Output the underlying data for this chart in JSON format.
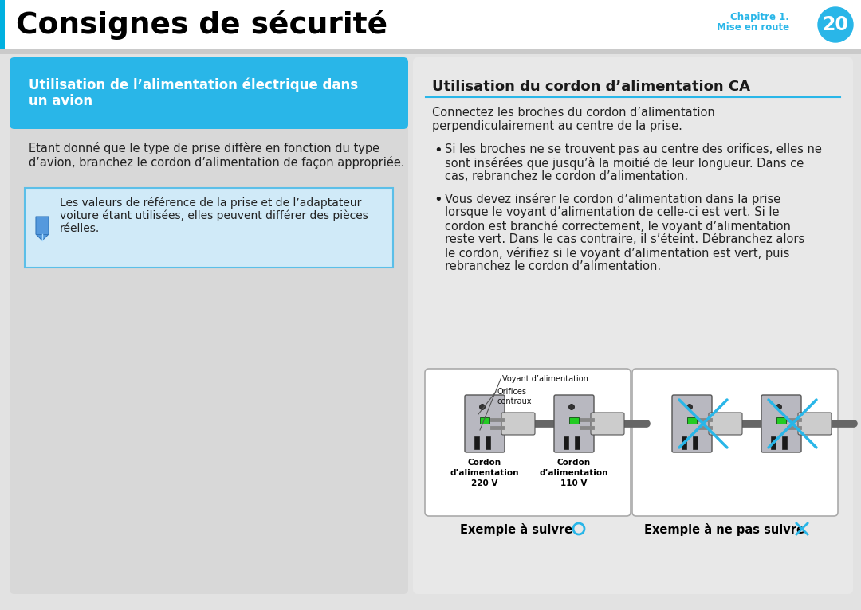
{
  "title": "Consignes de sécurité",
  "chapter_line1": "Chapitre 1.",
  "chapter_line2": "Mise en route",
  "chapter_number": "20",
  "left_section_title_line1": "Utilisation de l’alimentation électrique dans",
  "left_section_title_line2": "un avion",
  "left_body_line1": "Etant donné que le type de prise diffère en fonction du type",
  "left_body_line2": "d’avion, branchez le cordon d’alimentation de façon appropriée.",
  "note_line1": "Les valeurs de référence de la prise et de l’adaptateur",
  "note_line2": "voiture étant utilisées, elles peuvent différer des pièces",
  "note_line3": "réelles.",
  "right_section_title": "Utilisation du cordon d’alimentation CA",
  "right_intro_line1": "Connectez les broches du cordon d’alimentation",
  "right_intro_line2": "perpendiculairement au centre de la prise.",
  "bullet1_line1": "Si les broches ne se trouvent pas au centre des orifices, elles ne",
  "bullet1_line2": "sont insérées que jusqu’à la moitié de leur longueur. Dans ce",
  "bullet1_line3": "cas, rebranchez le cordon d’alimentation.",
  "bullet2_line1": "Vous devez insérer le cordon d’alimentation dans la prise",
  "bullet2_line2": "lorsque le voyant d’alimentation de celle-ci est vert. Si le",
  "bullet2_line3": "cordon est branché correctement, le voyant d’alimentation",
  "bullet2_line4": "reste vert. Dans le cas contraire, il s’éteint. Débranchez alors",
  "bullet2_line5": "le cordon, vérifiez si le voyant d’alimentation est vert, puis",
  "bullet2_line6": "rebranchez le cordon d’alimentation.",
  "label_voyant": "Voyant d’alimentation",
  "label_orifices_line1": "Orifices",
  "label_orifices_line2": "centraux",
  "label_220_line1": "Cordon",
  "label_220_line2": "d’alimentation",
  "label_220_line3": "220 V",
  "label_110_line1": "Cordon",
  "label_110_line2": "d’alimentation",
  "label_110_line3": "110 V",
  "example_good": "Exemple à suivre",
  "example_bad": "Exemple à ne pas suivre",
  "bg_color": "#e2e2e2",
  "header_bg": "#ffffff",
  "header_blue_bar": "#00b0e0",
  "left_panel_bg": "#d8d8d8",
  "left_title_bg": "#29b6e8",
  "note_bg": "#d0eaf8",
  "note_border": "#5bbfe8",
  "right_panel_bg": "#e8e8e8",
  "chapter_color": "#29b6e8",
  "section_line_color": "#29b6e8",
  "text_dark": "#1a1a1a",
  "text_body": "#222222"
}
